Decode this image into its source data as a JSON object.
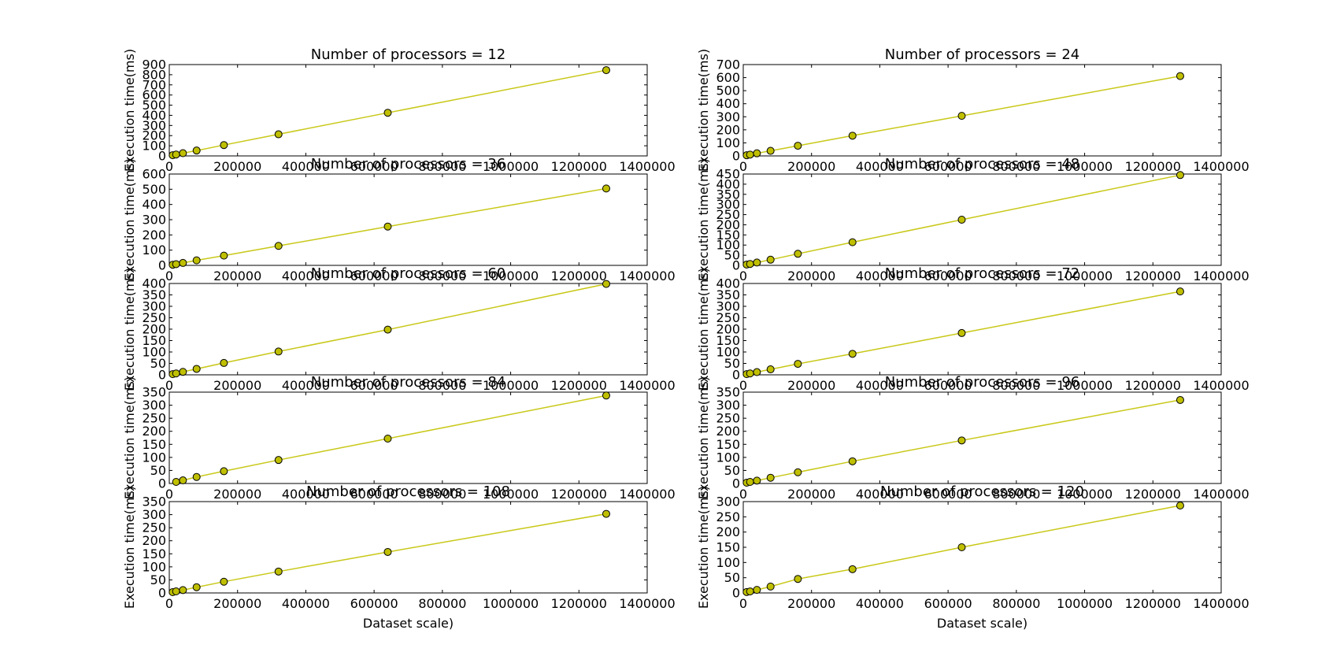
{
  "figure": {
    "line_color": "#c8c818",
    "marker_fill": "#bfbf00",
    "marker_edge": "#000000"
  },
  "chart_data": [
    {
      "type": "line",
      "title": "Number of processors = 12",
      "ylabel": "Execution time(ms)",
      "xlabel": "",
      "xlim": [
        0,
        1400000
      ],
      "ylim": [
        0,
        900
      ],
      "xticks": [
        "0",
        "200000",
        "400000",
        "600000",
        "800000",
        "1000000",
        "1200000",
        "1400000"
      ],
      "yticks": [
        "0",
        "100",
        "200",
        "300",
        "400",
        "500",
        "600",
        "700",
        "800",
        "900"
      ],
      "x": [
        10000,
        20000,
        40000,
        80000,
        160000,
        320000,
        640000,
        1280000
      ],
      "y": [
        7,
        14,
        27,
        53,
        107,
        213,
        425,
        845
      ],
      "grid": false
    },
    {
      "type": "line",
      "title": "Number of processors = 24",
      "ylabel": "Execution time(ms)",
      "xlabel": "",
      "xlim": [
        0,
        1400000
      ],
      "ylim": [
        0,
        700
      ],
      "xticks": [
        "0",
        "200000",
        "400000",
        "600000",
        "800000",
        "1000000",
        "1200000",
        "1400000"
      ],
      "yticks": [
        "0",
        "100",
        "200",
        "300",
        "400",
        "500",
        "600",
        "700"
      ],
      "x": [
        10000,
        20000,
        40000,
        80000,
        160000,
        320000,
        640000,
        1280000
      ],
      "y": [
        5,
        10,
        20,
        39,
        78,
        155,
        307,
        612
      ],
      "grid": false
    },
    {
      "type": "line",
      "title": "Number of processors = 36",
      "ylabel": "Execution time(ms)",
      "xlabel": "",
      "xlim": [
        0,
        1400000
      ],
      "ylim": [
        0,
        600
      ],
      "xticks": [
        "0",
        "200000",
        "400000",
        "600000",
        "800000",
        "1000000",
        "1200000",
        "1400000"
      ],
      "yticks": [
        "0",
        "100",
        "200",
        "300",
        "400",
        "500",
        "600"
      ],
      "x": [
        10000,
        20000,
        40000,
        80000,
        160000,
        320000,
        640000,
        1280000
      ],
      "y": [
        4,
        8,
        16,
        33,
        64,
        128,
        255,
        505
      ],
      "grid": false
    },
    {
      "type": "line",
      "title": "Number of processors = 48",
      "ylabel": "Execution time(ms)",
      "xlabel": "",
      "xlim": [
        0,
        1400000
      ],
      "ylim": [
        0,
        450
      ],
      "xticks": [
        "0",
        "200000",
        "400000",
        "600000",
        "800000",
        "1000000",
        "1200000",
        "1400000"
      ],
      "yticks": [
        "0",
        "50",
        "100",
        "150",
        "200",
        "250",
        "300",
        "350",
        "400",
        "450"
      ],
      "x": [
        10000,
        20000,
        40000,
        80000,
        160000,
        320000,
        640000,
        1280000
      ],
      "y": [
        4,
        7,
        14,
        28,
        57,
        114,
        225,
        445
      ],
      "grid": false
    },
    {
      "type": "line",
      "title": "Number of processors = 60",
      "ylabel": "Execution time(ms)",
      "xlabel": "",
      "xlim": [
        0,
        1400000
      ],
      "ylim": [
        0,
        400
      ],
      "xticks": [
        "0",
        "200000",
        "400000",
        "600000",
        "800000",
        "1000000",
        "1200000",
        "1400000"
      ],
      "yticks": [
        "0",
        "50",
        "100",
        "150",
        "200",
        "250",
        "300",
        "350",
        "400"
      ],
      "x": [
        10000,
        20000,
        40000,
        80000,
        160000,
        320000,
        640000,
        1280000
      ],
      "y": [
        3,
        6,
        13,
        26,
        52,
        102,
        198,
        398
      ],
      "grid": false
    },
    {
      "type": "line",
      "title": "Number of processors = 72",
      "ylabel": "Execution time(ms)",
      "xlabel": "",
      "xlim": [
        0,
        1400000
      ],
      "ylim": [
        0,
        400
      ],
      "xticks": [
        "0",
        "200000",
        "400000",
        "600000",
        "800000",
        "1000000",
        "1200000",
        "1400000"
      ],
      "yticks": [
        "0",
        "50",
        "100",
        "150",
        "200",
        "250",
        "300",
        "350",
        "400"
      ],
      "x": [
        10000,
        20000,
        40000,
        80000,
        160000,
        320000,
        640000,
        1280000
      ],
      "y": [
        3,
        6,
        12,
        24,
        48,
        92,
        183,
        365
      ],
      "grid": false
    },
    {
      "type": "line",
      "title": "Number of processors = 84",
      "ylabel": "Execution time(ms)",
      "xlabel": "",
      "xlim": [
        0,
        1400000
      ],
      "ylim": [
        0,
        350
      ],
      "xticks": [
        "0",
        "200000",
        "400000",
        "600000",
        "800000",
        "1000000",
        "1200000",
        "1400000"
      ],
      "yticks": [
        "0",
        "50",
        "100",
        "150",
        "200",
        "250",
        "300",
        "350"
      ],
      "x": [
        20000,
        40000,
        80000,
        160000,
        320000,
        640000,
        1280000
      ],
      "y": [
        6,
        12,
        25,
        47,
        90,
        172,
        337
      ],
      "grid": false
    },
    {
      "type": "line",
      "title": "Number of processors = 96",
      "ylabel": "Execution time(ms)",
      "xlabel": "",
      "xlim": [
        0,
        1400000
      ],
      "ylim": [
        0,
        350
      ],
      "xticks": [
        "0",
        "200000",
        "400000",
        "600000",
        "800000",
        "1000000",
        "1200000",
        "1400000"
      ],
      "yticks": [
        "0",
        "50",
        "100",
        "150",
        "200",
        "250",
        "300",
        "350"
      ],
      "x": [
        10000,
        20000,
        40000,
        80000,
        160000,
        320000,
        640000,
        1280000
      ],
      "y": [
        3,
        6,
        11,
        22,
        43,
        85,
        165,
        320
      ],
      "grid": false
    },
    {
      "type": "line",
      "title": "Number of processors = 108",
      "ylabel": "Execution time(ms)",
      "xlabel": "Dataset scale)",
      "xlim": [
        0,
        1400000
      ],
      "ylim": [
        0,
        350
      ],
      "xticks": [
        "0",
        "200000",
        "400000",
        "600000",
        "800000",
        "1000000",
        "1200000",
        "1400000"
      ],
      "yticks": [
        "0",
        "50",
        "100",
        "150",
        "200",
        "250",
        "300",
        "350"
      ],
      "x": [
        10000,
        20000,
        40000,
        80000,
        160000,
        320000,
        640000,
        1280000
      ],
      "y": [
        3,
        6,
        11,
        22,
        43,
        82,
        157,
        303
      ],
      "grid": false
    },
    {
      "type": "line",
      "title": "Number of processors = 120",
      "ylabel": "Execution time(ms)",
      "xlabel": "Dataset scale)",
      "xlim": [
        0,
        1400000
      ],
      "ylim": [
        0,
        300
      ],
      "xticks": [
        "0",
        "200000",
        "400000",
        "600000",
        "800000",
        "1000000",
        "1200000",
        "1400000"
      ],
      "yticks": [
        "0",
        "50",
        "100",
        "150",
        "200",
        "250",
        "300"
      ],
      "x": [
        10000,
        20000,
        40000,
        80000,
        160000,
        320000,
        640000,
        1280000
      ],
      "y": [
        3,
        5,
        10,
        21,
        46,
        78,
        150,
        287
      ],
      "grid": false
    }
  ]
}
